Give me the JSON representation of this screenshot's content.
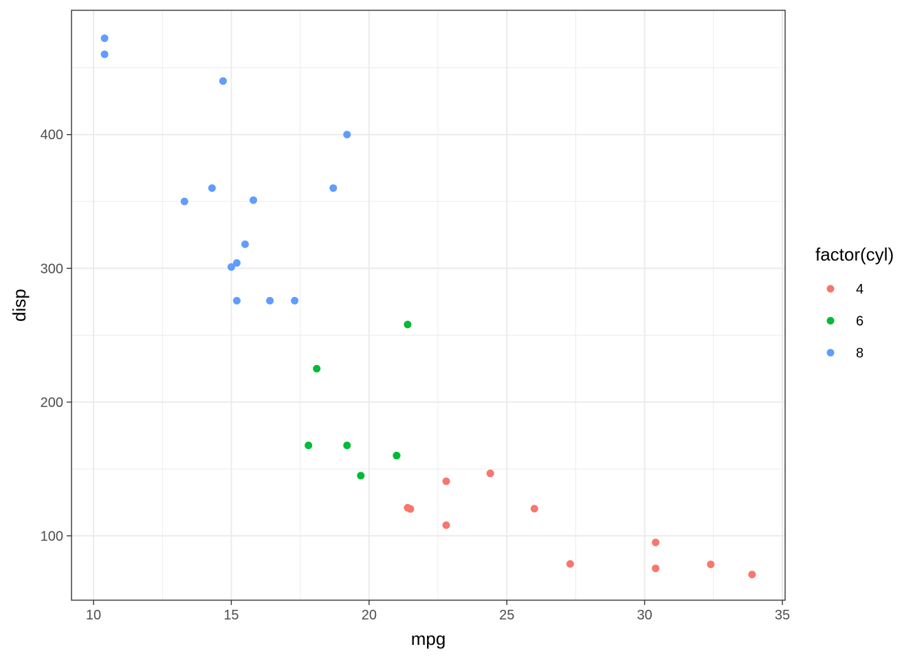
{
  "chart_data": {
    "type": "scatter",
    "xlabel": "mpg",
    "ylabel": "disp",
    "xlim": [
      9.2,
      35.1
    ],
    "ylim": [
      51.9,
      492.9
    ],
    "x_ticks": [
      10,
      15,
      20,
      25,
      30,
      35
    ],
    "x_tick_labels": [
      "10",
      "15",
      "20",
      "25",
      "30",
      "35"
    ],
    "y_ticks": [
      100,
      200,
      300,
      400
    ],
    "y_tick_labels": [
      "100",
      "200",
      "300",
      "400"
    ],
    "x_minor_ticks": [
      12.5,
      17.5,
      22.5,
      27.5,
      32.5
    ],
    "y_minor_ticks": [
      150,
      250,
      350,
      450
    ],
    "grid": true,
    "legend": {
      "title": "factor(cyl)",
      "position": "right"
    },
    "series": [
      {
        "name": "4",
        "color": "#F8766D",
        "points": [
          {
            "x": 22.8,
            "y": 108
          },
          {
            "x": 24.4,
            "y": 146.7
          },
          {
            "x": 22.8,
            "y": 140.8
          },
          {
            "x": 32.4,
            "y": 78.7
          },
          {
            "x": 30.4,
            "y": 75.7
          },
          {
            "x": 33.9,
            "y": 71.1
          },
          {
            "x": 21.5,
            "y": 120.1
          },
          {
            "x": 27.3,
            "y": 79
          },
          {
            "x": 26.0,
            "y": 120.3
          },
          {
            "x": 30.4,
            "y": 95.1
          },
          {
            "x": 21.4,
            "y": 121
          }
        ]
      },
      {
        "name": "6",
        "color": "#00BA38",
        "points": [
          {
            "x": 21.0,
            "y": 160
          },
          {
            "x": 21.0,
            "y": 160
          },
          {
            "x": 21.4,
            "y": 258
          },
          {
            "x": 18.1,
            "y": 225
          },
          {
            "x": 19.2,
            "y": 167.6
          },
          {
            "x": 17.8,
            "y": 167.6
          },
          {
            "x": 19.7,
            "y": 145
          }
        ]
      },
      {
        "name": "8",
        "color": "#619CFF",
        "points": [
          {
            "x": 18.7,
            "y": 360
          },
          {
            "x": 14.3,
            "y": 360
          },
          {
            "x": 16.4,
            "y": 275.8
          },
          {
            "x": 17.3,
            "y": 275.8
          },
          {
            "x": 15.2,
            "y": 275.8
          },
          {
            "x": 10.4,
            "y": 472
          },
          {
            "x": 10.4,
            "y": 460
          },
          {
            "x": 14.7,
            "y": 440
          },
          {
            "x": 15.5,
            "y": 318
          },
          {
            "x": 15.2,
            "y": 304
          },
          {
            "x": 13.3,
            "y": 350
          },
          {
            "x": 19.2,
            "y": 400
          },
          {
            "x": 15.8,
            "y": 351
          },
          {
            "x": 15.0,
            "y": 301
          }
        ]
      }
    ]
  }
}
